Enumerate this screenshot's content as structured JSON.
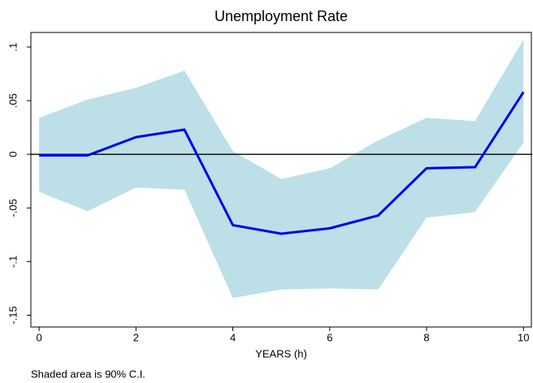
{
  "chart_data": {
    "type": "line",
    "title": "Unemployment Rate",
    "x_label": "YEARS (h)",
    "note": "Shaded area is 90% C.I.",
    "x": [
      0,
      1,
      2,
      3,
      4,
      5,
      6,
      7,
      8,
      9,
      10
    ],
    "values": [
      -0.001,
      -0.001,
      0.016,
      0.023,
      -0.066,
      -0.074,
      -0.069,
      -0.057,
      -0.013,
      -0.012,
      0.058
    ],
    "color": "#0000ee",
    "band": {
      "lower": [
        -0.035,
        -0.053,
        -0.031,
        -0.033,
        -0.134,
        -0.126,
        -0.125,
        -0.126,
        -0.059,
        -0.054,
        0.011
      ],
      "upper": [
        0.034,
        0.051,
        0.062,
        0.078,
        0.003,
        -0.023,
        -0.013,
        0.013,
        0.034,
        0.031,
        0.107
      ],
      "color": "#bddfe8"
    },
    "hline": 0,
    "xlim": [
      -0.17,
      10.18
    ],
    "ylim": [
      -0.161,
      0.1136
    ],
    "xticks": [
      0,
      2,
      4,
      6,
      8,
      10
    ],
    "yticks": [
      {
        "value": 0.1,
        "label": ".1"
      },
      {
        "value": 0.05,
        "label": ".05"
      },
      {
        "value": 0,
        "label": "0"
      },
      {
        "value": -0.05,
        "label": "-.05"
      },
      {
        "value": -0.1,
        "label": "-.1"
      },
      {
        "value": -0.15,
        "label": "-.15"
      }
    ]
  }
}
